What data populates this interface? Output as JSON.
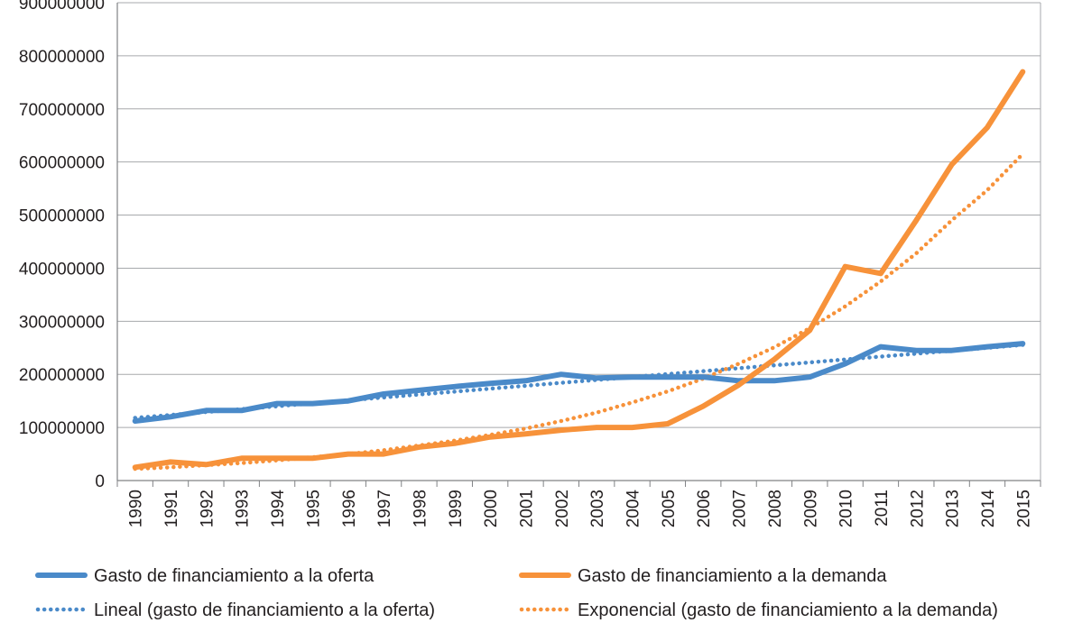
{
  "chart_data": {
    "type": "line",
    "title": "",
    "xlabel": "",
    "ylabel": "",
    "ylim": [
      0,
      900000000
    ],
    "yticks": [
      "0",
      "100000000",
      "200000000",
      "300000000",
      "400000000",
      "500000000",
      "600000000",
      "700000000",
      "800000000",
      "900000000"
    ],
    "ytick_values": [
      0,
      100000000,
      200000000,
      300000000,
      400000000,
      500000000,
      600000000,
      700000000,
      800000000,
      900000000
    ],
    "grid": "horizontal",
    "legend_position": "bottom",
    "categories": [
      "1990",
      "1991",
      "1992",
      "1993",
      "1994",
      "1995",
      "1996",
      "1997",
      "1998",
      "1999",
      "2000",
      "2001",
      "2002",
      "2003",
      "2004",
      "2005",
      "2006",
      "2007",
      "2008",
      "2009",
      "2010",
      "2011",
      "2012",
      "2013",
      "2014",
      "2015"
    ],
    "series": [
      {
        "name": "Gasto de financiamiento a la oferta",
        "style": "solid",
        "color": "#4a8ac9",
        "values": [
          112000000,
          120000000,
          132000000,
          132000000,
          145000000,
          145000000,
          150000000,
          163000000,
          170000000,
          177000000,
          183000000,
          188000000,
          200000000,
          193000000,
          195000000,
          195000000,
          195000000,
          188000000,
          188000000,
          195000000,
          220000000,
          252000000,
          245000000,
          245000000,
          252000000,
          258000000
        ]
      },
      {
        "name": "Gasto de financiamiento a la demanda",
        "style": "solid",
        "color": "#f7923a",
        "values": [
          25000000,
          35000000,
          30000000,
          42000000,
          42000000,
          42000000,
          50000000,
          50000000,
          63000000,
          70000000,
          82000000,
          88000000,
          95000000,
          100000000,
          100000000,
          107000000,
          140000000,
          180000000,
          228000000,
          283000000,
          403000000,
          390000000,
          490000000,
          595000000,
          665000000,
          770000000
        ]
      },
      {
        "name": "Lineal (gasto de financiamiento a la oferta)",
        "style": "dotted",
        "color": "#4a8ac9",
        "values": [
          118000000,
          123500000,
          129000000,
          134500000,
          140000000,
          145500000,
          151000000,
          156500000,
          162000000,
          167500000,
          173000000,
          178500000,
          184000000,
          189500000,
          195000000,
          200500000,
          206000000,
          211500000,
          217000000,
          222500000,
          228000000,
          233500000,
          239000000,
          244500000,
          250000000,
          255500000
        ]
      },
      {
        "name": "Exponencial (gasto de financiamiento a la demanda)",
        "style": "dotted",
        "color": "#f7923a",
        "values": [
          22000000,
          25000000,
          29000000,
          33000000,
          38000000,
          44000000,
          50000000,
          57000000,
          66000000,
          75000000,
          86000000,
          98000000,
          112000000,
          128000000,
          147000000,
          168000000,
          192000000,
          220000000,
          251000000,
          287000000,
          328000000,
          375000000,
          428000000,
          490000000,
          547000000,
          615000000
        ]
      }
    ]
  }
}
